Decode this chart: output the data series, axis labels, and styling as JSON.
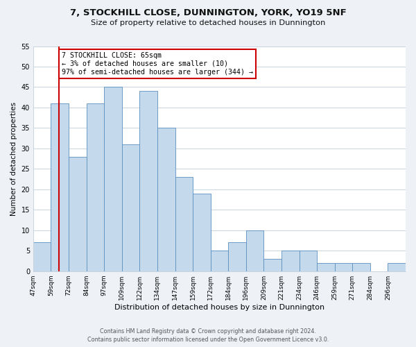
{
  "title": "7, STOCKHILL CLOSE, DUNNINGTON, YORK, YO19 5NF",
  "subtitle": "Size of property relative to detached houses in Dunnington",
  "xlabel": "Distribution of detached houses by size in Dunnington",
  "ylabel": "Number of detached properties",
  "bin_labels": [
    "47sqm",
    "59sqm",
    "72sqm",
    "84sqm",
    "97sqm",
    "109sqm",
    "122sqm",
    "134sqm",
    "147sqm",
    "159sqm",
    "172sqm",
    "184sqm",
    "196sqm",
    "209sqm",
    "221sqm",
    "234sqm",
    "246sqm",
    "259sqm",
    "271sqm",
    "284sqm",
    "296sqm"
  ],
  "bar_heights": [
    7,
    41,
    28,
    41,
    45,
    31,
    44,
    35,
    23,
    19,
    5,
    7,
    10,
    3,
    5,
    5,
    2,
    2,
    2,
    0,
    2
  ],
  "bar_color": "#c5d9ed",
  "bar_edge_color": "#5a8fc0",
  "bin_edges": [
    47,
    59,
    72,
    84,
    97,
    109,
    122,
    134,
    147,
    159,
    172,
    184,
    196,
    209,
    221,
    234,
    246,
    259,
    271,
    284,
    296,
    308
  ],
  "annotation_title": "7 STOCKHILL CLOSE: 65sqm",
  "annotation_line1": "← 3% of detached houses are smaller (10)",
  "annotation_line2": "97% of semi-detached houses are larger (344) →",
  "annotation_box_color": "#ffffff",
  "annotation_box_edge": "#cc0000",
  "ref_line_color": "#cc0000",
  "ref_sqm": 65,
  "ylim": [
    0,
    55
  ],
  "yticks": [
    0,
    5,
    10,
    15,
    20,
    25,
    30,
    35,
    40,
    45,
    50,
    55
  ],
  "footer_line1": "Contains HM Land Registry data © Crown copyright and database right 2024.",
  "footer_line2": "Contains public sector information licensed under the Open Government Licence v3.0.",
  "background_color": "#eef2f7",
  "plot_background": "#ffffff",
  "grid_color": "#c8d4e0"
}
